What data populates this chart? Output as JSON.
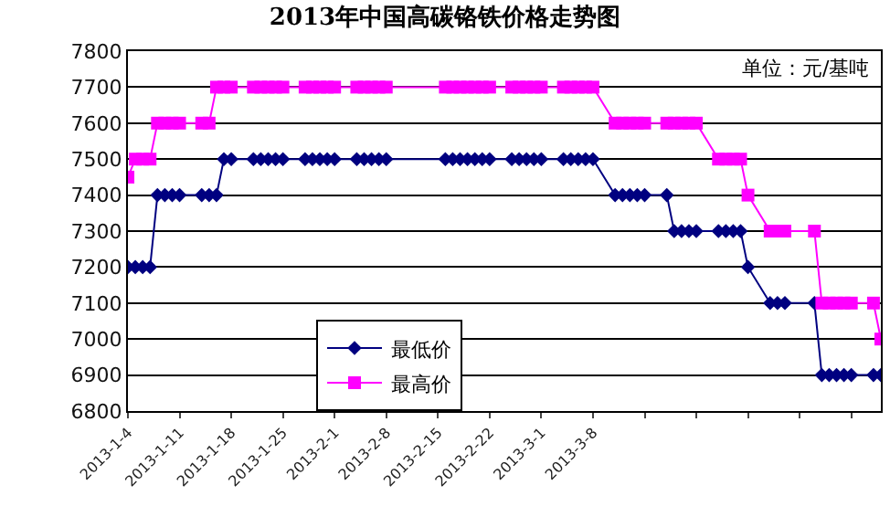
{
  "chart_data": {
    "type": "line",
    "title": "2013年中国高碳铬铁价格走势图",
    "annotations": [
      "单位：元/基吨"
    ],
    "x": [
      "2013-01-04",
      "2013-01-05",
      "2013-01-06",
      "2013-01-07",
      "2013-01-08",
      "2013-01-09",
      "2013-01-10",
      "2013-01-11",
      "2013-01-14",
      "2013-01-15",
      "2013-01-16",
      "2013-01-17",
      "2013-01-18",
      "2013-01-21",
      "2013-01-22",
      "2013-01-23",
      "2013-01-24",
      "2013-01-25",
      "2013-01-28",
      "2013-01-29",
      "2013-01-30",
      "2013-01-31",
      "2013-02-01",
      "2013-02-04",
      "2013-02-05",
      "2013-02-06",
      "2013-02-07",
      "2013-02-08",
      "2013-02-16",
      "2013-02-17",
      "2013-02-18",
      "2013-02-19",
      "2013-02-20",
      "2013-02-21",
      "2013-02-22",
      "2013-02-25",
      "2013-02-26",
      "2013-02-27",
      "2013-02-28",
      "2013-03-01",
      "2013-03-04",
      "2013-03-05",
      "2013-03-06",
      "2013-03-07",
      "2013-03-08",
      "2013-03-11",
      "2013-03-12",
      "2013-03-13",
      "2013-03-14",
      "2013-03-15",
      "2013-03-18",
      "2013-03-19",
      "2013-03-20",
      "2013-03-21",
      "2013-03-22",
      "2013-03-25",
      "2013-03-26",
      "2013-03-27",
      "2013-03-28",
      "2013-03-29",
      "2013-04-01",
      "2013-04-02",
      "2013-04-03",
      "2013-04-07",
      "2013-04-08",
      "2013-04-09",
      "2013-04-10",
      "2013-04-11",
      "2013-04-12",
      "2013-04-15",
      "2013-04-16"
    ],
    "series": [
      {
        "name": "最低价",
        "color": "#000080",
        "marker": "diamond",
        "values": [
          7200,
          7200,
          7200,
          7200,
          7400,
          7400,
          7400,
          7400,
          7400,
          7400,
          7400,
          7500,
          7500,
          7500,
          7500,
          7500,
          7500,
          7500,
          7500,
          7500,
          7500,
          7500,
          7500,
          7500,
          7500,
          7500,
          7500,
          7500,
          7500,
          7500,
          7500,
          7500,
          7500,
          7500,
          7500,
          7500,
          7500,
          7500,
          7500,
          7500,
          7500,
          7500,
          7500,
          7500,
          7500,
          7400,
          7400,
          7400,
          7400,
          7400,
          7400,
          7300,
          7300,
          7300,
          7300,
          7300,
          7300,
          7300,
          7300,
          7200,
          7100,
          7100,
          7100,
          7100,
          6900,
          6900,
          6900,
          6900,
          6900,
          6900,
          6900
        ]
      },
      {
        "name": "最高价",
        "color": "#ff00ff",
        "marker": "square",
        "values": [
          7450,
          7500,
          7500,
          7500,
          7600,
          7600,
          7600,
          7600,
          7600,
          7600,
          7700,
          7700,
          7700,
          7700,
          7700,
          7700,
          7700,
          7700,
          7700,
          7700,
          7700,
          7700,
          7700,
          7700,
          7700,
          7700,
          7700,
          7700,
          7700,
          7700,
          7700,
          7700,
          7700,
          7700,
          7700,
          7700,
          7700,
          7700,
          7700,
          7700,
          7700,
          7700,
          7700,
          7700,
          7700,
          7600,
          7600,
          7600,
          7600,
          7600,
          7600,
          7600,
          7600,
          7600,
          7600,
          7500,
          7500,
          7500,
          7500,
          7400,
          7300,
          7300,
          7300,
          7300,
          7100,
          7100,
          7100,
          7100,
          7100,
          7100,
          7000
        ]
      }
    ],
    "xlim": [
      "2013-01-04",
      "2013-04-16"
    ],
    "xticks": [
      {
        "value": "2013-01-04",
        "label": "2013-1-4"
      },
      {
        "value": "2013-01-11",
        "label": "2013-1-11"
      },
      {
        "value": "2013-01-18",
        "label": "2013-1-18"
      },
      {
        "value": "2013-01-25",
        "label": "2013-1-25"
      },
      {
        "value": "2013-02-01",
        "label": "2013-2-1"
      },
      {
        "value": "2013-02-08",
        "label": "2013-2-8"
      },
      {
        "value": "2013-02-15",
        "label": "2013-2-15"
      },
      {
        "value": "2013-02-22",
        "label": "2013-2-22"
      },
      {
        "value": "2013-03-01",
        "label": "2013-3-1"
      },
      {
        "value": "2013-03-08",
        "label": "2013-3-8"
      },
      {
        "value": "2013-03-15",
        "label": null
      },
      {
        "value": "2013-03-22",
        "label": null
      },
      {
        "value": "2013-03-29",
        "label": null
      },
      {
        "value": "2013-04-05",
        "label": null
      },
      {
        "value": "2013-04-12",
        "label": null
      }
    ],
    "ylim": [
      6800,
      7800
    ],
    "yticks": [
      6800,
      6900,
      7000,
      7100,
      7200,
      7300,
      7400,
      7500,
      7600,
      7700,
      7800
    ],
    "grid": "y",
    "legend": "bottom left"
  }
}
